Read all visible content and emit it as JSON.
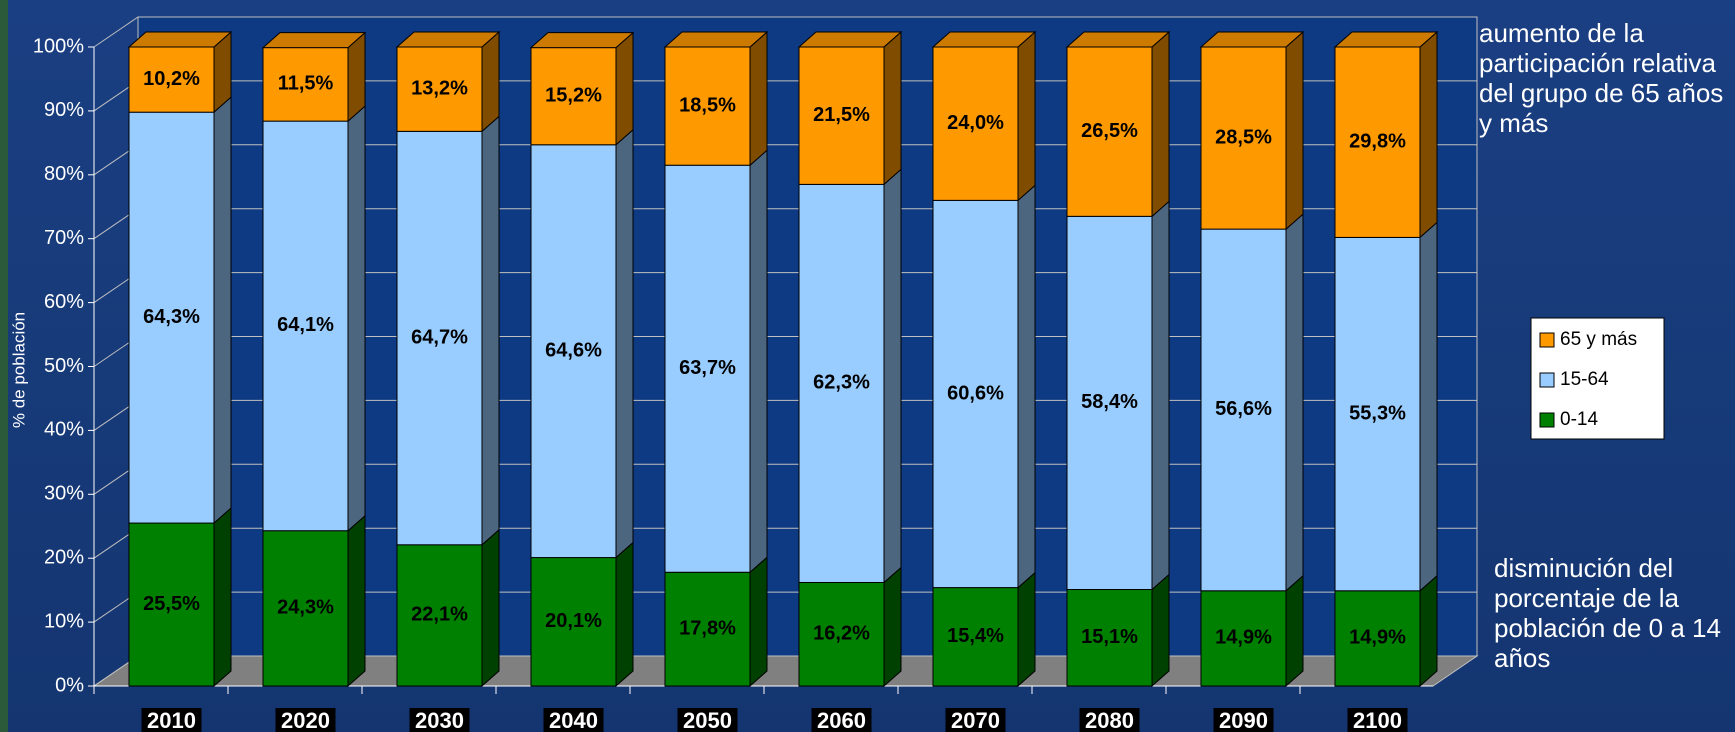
{
  "chart_data": {
    "type": "bar3d_stacked",
    "y_label": "% de población",
    "categories": [
      "2010",
      "2020",
      "2030",
      "2040",
      "2050",
      "2060",
      "2070",
      "2080",
      "2090",
      "2100"
    ],
    "series": [
      {
        "name": "0-14",
        "color": "#008000",
        "side_color": "#004000",
        "values": [
          25.5,
          24.3,
          22.1,
          20.1,
          17.8,
          16.2,
          15.4,
          15.1,
          14.9,
          14.9
        ],
        "value_labels": [
          "25,5%",
          "24,3%",
          "22,1%",
          "20,1%",
          "17,8%",
          "16,2%",
          "15,4%",
          "15,1%",
          "14,9%",
          "14,9%"
        ]
      },
      {
        "name": "15-64",
        "color": "#99ccff",
        "side_color": "#4d6680",
        "values": [
          64.3,
          64.1,
          64.7,
          64.6,
          63.7,
          62.3,
          60.6,
          58.4,
          56.6,
          55.3
        ],
        "value_labels": [
          "64,3%",
          "64,1%",
          "64,7%",
          "64,6%",
          "63,7%",
          "62,3%",
          "60,6%",
          "58,4%",
          "56,6%",
          "55,3%"
        ]
      },
      {
        "name": "65 y más",
        "color": "#ff9900",
        "side_color": "#804c00",
        "values": [
          10.2,
          11.5,
          13.2,
          15.2,
          18.5,
          21.5,
          24.0,
          26.5,
          28.5,
          29.8
        ],
        "value_labels": [
          "10,2%",
          "11,5%",
          "13,2%",
          "15,2%",
          "18,5%",
          "21,5%",
          "24,0%",
          "26,5%",
          "28,5%",
          "29,8%"
        ]
      }
    ],
    "ylim": [
      0,
      100
    ],
    "yticks": [
      {
        "value": 0,
        "label": "0%"
      },
      {
        "value": 10,
        "label": "10%"
      },
      {
        "value": 20,
        "label": "20%"
      },
      {
        "value": 30,
        "label": "30%"
      },
      {
        "value": 40,
        "label": "40%"
      },
      {
        "value": 50,
        "label": "50%"
      },
      {
        "value": 60,
        "label": "60%"
      },
      {
        "value": 70,
        "label": "70%"
      },
      {
        "value": 80,
        "label": "80%"
      },
      {
        "value": 90,
        "label": "90%"
      },
      {
        "value": 100,
        "label": "100%"
      }
    ],
    "grid": true,
    "legend": "right",
    "annotations": [
      "aumento de la participación relativa del grupo de 65 años y más",
      "disminución del porcentaje de la población de 0 a 14 años"
    ]
  }
}
